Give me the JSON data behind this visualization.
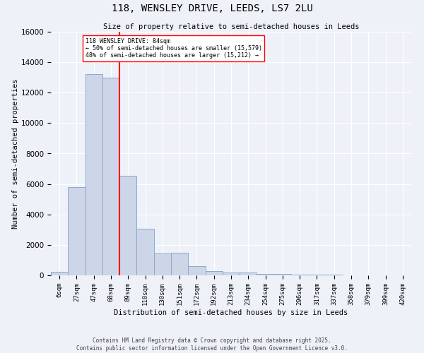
{
  "title": "118, WENSLEY DRIVE, LEEDS, LS7 2LU",
  "subtitle": "Size of property relative to semi-detached houses in Leeds",
  "xlabel": "Distribution of semi-detached houses by size in Leeds",
  "ylabel": "Number of semi-detached properties",
  "bar_labels": [
    "6sqm",
    "27sqm",
    "47sqm",
    "68sqm",
    "89sqm",
    "110sqm",
    "130sqm",
    "151sqm",
    "172sqm",
    "192sqm",
    "213sqm",
    "234sqm",
    "254sqm",
    "275sqm",
    "296sqm",
    "317sqm",
    "337sqm",
    "358sqm",
    "379sqm",
    "399sqm",
    "420sqm"
  ],
  "bar_values": [
    250,
    5800,
    13200,
    13000,
    6550,
    3050,
    1450,
    1500,
    620,
    280,
    200,
    180,
    100,
    80,
    60,
    40,
    25,
    15,
    10,
    8,
    5
  ],
  "bar_color": "#ccd6e8",
  "bar_edge_color": "#8aaac8",
  "background_color": "#eef2f8",
  "grid_color": "#ffffff",
  "red_line_x": 3.5,
  "annotation_title": "118 WENSLEY DRIVE: 84sqm",
  "annotation_line1": "← 50% of semi-detached houses are smaller (15,579)",
  "annotation_line2": "48% of semi-detached houses are larger (15,212) →",
  "footer_line1": "Contains HM Land Registry data © Crown copyright and database right 2025.",
  "footer_line2": "Contains public sector information licensed under the Open Government Licence v3.0.",
  "ylim": [
    0,
    16000
  ],
  "yticks": [
    0,
    2000,
    4000,
    6000,
    8000,
    10000,
    12000,
    14000,
    16000
  ]
}
